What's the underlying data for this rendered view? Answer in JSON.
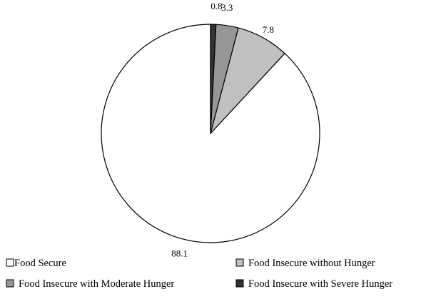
{
  "chart_data": {
    "type": "pie",
    "title": "",
    "categories": [
      "Food Secure",
      "Food Insecure without Hunger",
      "Food Insecure with Moderate Hunger",
      "Food Insecure with Severe Hunger"
    ],
    "values": [
      88.1,
      7.8,
      3.3,
      0.8
    ],
    "data_labels": [
      "88.1",
      "7.8",
      "3.3",
      "0.8"
    ],
    "colors": [
      "#ffffff",
      "#c0c0c0",
      "#969696",
      "#333333"
    ],
    "start_angle": "12 o'clock",
    "direction": "counterclockwise",
    "legend_position": "bottom",
    "legend_columns": 2
  }
}
